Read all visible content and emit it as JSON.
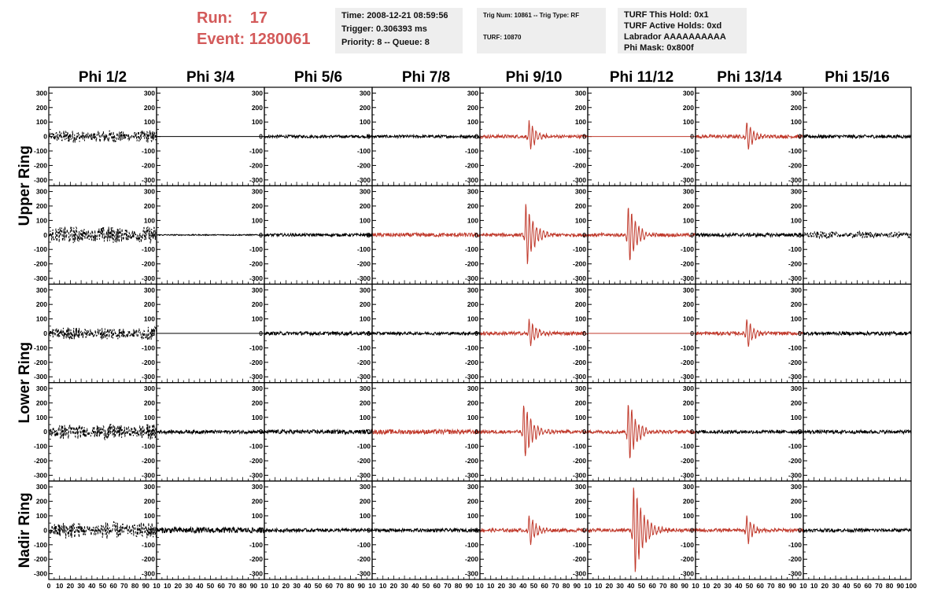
{
  "header": {
    "run_label": "Run:",
    "run_value": "17",
    "event_label": "Event:",
    "event_value": "1280061"
  },
  "info_time": {
    "line1": "Time: 2008-12-21 08:59:56",
    "line2": "Trigger: 0.306393 ms",
    "line3": "Priority: 8 -- Queue: 8"
  },
  "info_trig": {
    "line1": "Trig Num: 10861 -- Trig Type: RF",
    "line2": "TURF: 10870"
  },
  "info_turf": {
    "line1": "TURF This Hold: 0x1",
    "line2": "TURF Active Holds: 0xd",
    "line3": "Labrador AAAAAAAAAA",
    "line4": "Phi Mask: 0x800f"
  },
  "colors": {
    "triggered": "#c0392b",
    "normal": "#000000",
    "header_red": "#d35a5a"
  },
  "chart_data": {
    "type": "line",
    "columns": [
      "Phi 1/2",
      "Phi 3/4",
      "Phi 5/6",
      "Phi 7/8",
      "Phi 9/10",
      "Phi 11/12",
      "Phi 13/14",
      "Phi 15/16"
    ],
    "rows": [
      "Upper Ring",
      "Lower Ring",
      "Nadir Ring"
    ],
    "row_label_spans": [
      [
        0,
        1
      ],
      [
        2,
        3
      ],
      [
        4,
        4
      ]
    ],
    "xlim": [
      0,
      100
    ],
    "ylim": [
      -340,
      340
    ],
    "x_ticks": [
      0,
      10,
      20,
      30,
      40,
      50,
      60,
      70,
      80,
      90,
      100
    ],
    "y_ticks": [
      -300,
      -200,
      -100,
      0,
      100,
      200,
      300
    ],
    "bottom_tick_labels": [
      "0",
      "10",
      "20",
      "30",
      "40",
      "50",
      "60",
      "70",
      "80",
      "90",
      "10",
      "10",
      "20",
      "30",
      "40",
      "50",
      "60",
      "70",
      "80",
      "90",
      "10",
      "10",
      "20",
      "30",
      "40",
      "50",
      "60",
      "70",
      "80",
      "90",
      "10",
      "10",
      "20",
      "30",
      "40",
      "50",
      "60",
      "70",
      "80",
      "90",
      "10",
      "10",
      "20",
      "30",
      "40",
      "50",
      "60",
      "70",
      "80",
      "90",
      "10",
      "10",
      "20",
      "30",
      "40",
      "50",
      "60",
      "70",
      "80",
      "90",
      "10",
      "10",
      "20",
      "30",
      "40",
      "50",
      "60",
      "70",
      "80",
      "90",
      "10",
      "10",
      "20",
      "30",
      "40",
      "50",
      "60",
      "70",
      "80",
      "90",
      "100"
    ],
    "panels": [
      [
        {
          "type": "dashed",
          "amp": 45,
          "red": false
        },
        {
          "type": "flat",
          "amp": 0,
          "red": false
        },
        {
          "type": "noise",
          "amp": 10,
          "red": false
        },
        {
          "type": "noise",
          "amp": 10,
          "red": false
        },
        {
          "type": "pulse",
          "amp": 110,
          "center": 48,
          "width": 6,
          "red": true
        },
        {
          "type": "flat",
          "amp": 0,
          "red": true
        },
        {
          "type": "pulse",
          "amp": 120,
          "center": 50,
          "width": 5,
          "red": true
        },
        {
          "type": "noise",
          "amp": 12,
          "red": false
        }
      ],
      [
        {
          "type": "dashed",
          "amp": 60,
          "red": false
        },
        {
          "type": "noise",
          "amp": 4,
          "red": false
        },
        {
          "type": "noise",
          "amp": 10,
          "red": false
        },
        {
          "type": "noise",
          "amp": 14,
          "red": true
        },
        {
          "type": "pulse",
          "amp": 230,
          "center": 45,
          "width": 7,
          "red": true
        },
        {
          "type": "pulse",
          "amp": 220,
          "center": 40,
          "width": 7,
          "red": true
        },
        {
          "type": "noise",
          "amp": 12,
          "red": false
        },
        {
          "type": "dashed",
          "amp": 25,
          "red": false
        }
      ],
      [
        {
          "type": "dashed",
          "amp": 45,
          "red": false
        },
        {
          "type": "flat",
          "amp": 0,
          "red": false
        },
        {
          "type": "noise",
          "amp": 12,
          "red": false
        },
        {
          "type": "noise",
          "amp": 10,
          "red": false
        },
        {
          "type": "pulse",
          "amp": 100,
          "center": 48,
          "width": 6,
          "red": true
        },
        {
          "type": "flat",
          "amp": 0,
          "red": true
        },
        {
          "type": "pulse",
          "amp": 110,
          "center": 50,
          "width": 5,
          "red": true
        },
        {
          "type": "noise",
          "amp": 12,
          "red": false
        }
      ],
      [
        {
          "type": "dashed",
          "amp": 55,
          "red": false
        },
        {
          "type": "noise",
          "amp": 12,
          "red": false
        },
        {
          "type": "noise",
          "amp": 14,
          "red": false
        },
        {
          "type": "noise",
          "amp": 16,
          "red": true
        },
        {
          "type": "pulse",
          "amp": 210,
          "center": 43,
          "width": 7,
          "red": true
        },
        {
          "type": "pulse",
          "amp": 220,
          "center": 40,
          "width": 7,
          "red": true
        },
        {
          "type": "noise",
          "amp": 12,
          "red": false
        },
        {
          "type": "noise",
          "amp": 12,
          "red": false
        }
      ],
      [
        {
          "type": "dashed",
          "amp": 60,
          "red": false
        },
        {
          "type": "noise",
          "amp": 20,
          "red": false
        },
        {
          "type": "noise",
          "amp": 12,
          "red": false
        },
        {
          "type": "noise",
          "amp": 12,
          "red": false
        },
        {
          "type": "pulse",
          "amp": 110,
          "center": 48,
          "width": 6,
          "red": true
        },
        {
          "type": "pulse",
          "amp": 340,
          "center": 45,
          "width": 8,
          "red": true
        },
        {
          "type": "pulse",
          "amp": 110,
          "center": 50,
          "width": 5,
          "red": true
        },
        {
          "type": "noise",
          "amp": 12,
          "red": false
        }
      ]
    ]
  }
}
